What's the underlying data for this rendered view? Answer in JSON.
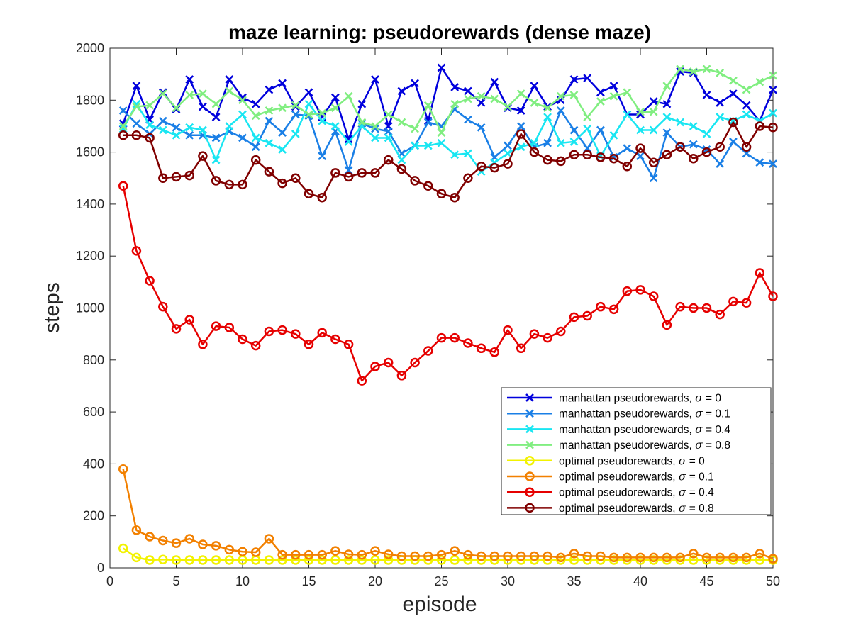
{
  "chart_data": {
    "type": "line",
    "title": "maze learning: pseudorewards (dense maze)",
    "xlabel": "episode",
    "ylabel": "steps",
    "xlim": [
      0,
      50
    ],
    "ylim": [
      0,
      2000
    ],
    "xticks": [
      0,
      5,
      10,
      15,
      20,
      25,
      30,
      35,
      40,
      45,
      50
    ],
    "yticks": [
      0,
      200,
      400,
      600,
      800,
      1000,
      1200,
      1400,
      1600,
      1800,
      2000
    ],
    "grid": false,
    "legend_position": "lower-right",
    "sigma_symbol": "σ",
    "x": [
      1,
      2,
      3,
      4,
      5,
      6,
      7,
      8,
      9,
      10,
      11,
      12,
      13,
      14,
      15,
      16,
      17,
      18,
      19,
      20,
      21,
      22,
      23,
      24,
      25,
      26,
      27,
      28,
      29,
      30,
      31,
      32,
      33,
      34,
      35,
      36,
      37,
      38,
      39,
      40,
      41,
      42,
      43,
      44,
      45,
      46,
      47,
      48,
      49,
      50
    ],
    "series": [
      {
        "name": "manhattan pseudorewards, ",
        "sigma": "0",
        "color": "#0000dd",
        "marker": "x",
        "values": [
          1710,
          1855,
          1725,
          1830,
          1765,
          1880,
          1775,
          1735,
          1880,
          1810,
          1785,
          1840,
          1865,
          1775,
          1830,
          1735,
          1810,
          1650,
          1785,
          1880,
          1700,
          1835,
          1865,
          1720,
          1925,
          1850,
          1835,
          1790,
          1870,
          1770,
          1760,
          1855,
          1775,
          1800,
          1880,
          1885,
          1830,
          1855,
          1745,
          1745,
          1795,
          1785,
          1910,
          1905,
          1820,
          1790,
          1825,
          1780,
          1720,
          1840
        ]
      },
      {
        "name": "manhattan pseudorewards, ",
        "sigma": "0.1",
        "color": "#1a7fe6",
        "marker": "x",
        "values": [
          1760,
          1710,
          1670,
          1720,
          1695,
          1665,
          1665,
          1655,
          1680,
          1655,
          1620,
          1720,
          1675,
          1745,
          1740,
          1585,
          1680,
          1530,
          1710,
          1690,
          1680,
          1595,
          1625,
          1715,
          1700,
          1765,
          1725,
          1695,
          1580,
          1625,
          1700,
          1620,
          1635,
          1760,
          1685,
          1615,
          1685,
          1580,
          1615,
          1585,
          1500,
          1675,
          1620,
          1630,
          1610,
          1555,
          1640,
          1595,
          1560,
          1555
        ]
      },
      {
        "name": "manhattan pseudorewards, ",
        "sigma": "0.4",
        "color": "#19e6f2",
        "marker": "x",
        "values": [
          1690,
          1785,
          1705,
          1685,
          1665,
          1695,
          1685,
          1570,
          1700,
          1745,
          1655,
          1635,
          1610,
          1670,
          1785,
          1720,
          1700,
          1640,
          1700,
          1655,
          1655,
          1570,
          1625,
          1625,
          1635,
          1590,
          1595,
          1525,
          1560,
          1595,
          1620,
          1635,
          1735,
          1635,
          1640,
          1690,
          1585,
          1665,
          1745,
          1685,
          1685,
          1735,
          1715,
          1700,
          1670,
          1735,
          1720,
          1745,
          1720,
          1750
        ]
      },
      {
        "name": "manhattan pseudorewards, ",
        "sigma": "0.8",
        "color": "#80ee80",
        "marker": "x",
        "values": [
          1700,
          1775,
          1780,
          1825,
          1770,
          1820,
          1825,
          1785,
          1835,
          1800,
          1740,
          1760,
          1770,
          1780,
          1745,
          1750,
          1770,
          1815,
          1715,
          1700,
          1745,
          1715,
          1690,
          1780,
          1675,
          1785,
          1805,
          1815,
          1805,
          1775,
          1825,
          1790,
          1770,
          1815,
          1820,
          1735,
          1795,
          1815,
          1830,
          1755,
          1755,
          1855,
          1920,
          1910,
          1920,
          1905,
          1875,
          1840,
          1870,
          1895
        ]
      },
      {
        "name": "optimal pseudorewards, ",
        "sigma": "0",
        "color": "#f2f200",
        "marker": "o",
        "values": [
          75,
          40,
          30,
          32,
          30,
          30,
          30,
          30,
          30,
          30,
          30,
          30,
          30,
          30,
          30,
          30,
          30,
          30,
          30,
          30,
          30,
          30,
          30,
          30,
          30,
          30,
          30,
          30,
          30,
          30,
          30,
          30,
          30,
          30,
          30,
          30,
          30,
          30,
          30,
          30,
          30,
          30,
          30,
          30,
          30,
          30,
          30,
          30,
          30,
          30
        ]
      },
      {
        "name": "optimal pseudorewards, ",
        "sigma": "0.1",
        "color": "#f28000",
        "marker": "o",
        "values": [
          380,
          145,
          120,
          105,
          95,
          112,
          90,
          85,
          70,
          62,
          60,
          112,
          50,
          50,
          50,
          50,
          65,
          52,
          50,
          65,
          52,
          45,
          45,
          45,
          50,
          65,
          50,
          45,
          45,
          45,
          45,
          45,
          45,
          40,
          55,
          45,
          45,
          40,
          40,
          40,
          40,
          40,
          40,
          55,
          40,
          40,
          40,
          40,
          55,
          35
        ]
      },
      {
        "name": "optimal pseudorewards, ",
        "sigma": "0.4",
        "color": "#e60000",
        "marker": "o",
        "values": [
          1470,
          1220,
          1105,
          1005,
          920,
          955,
          860,
          930,
          925,
          880,
          855,
          910,
          915,
          900,
          860,
          905,
          880,
          860,
          720,
          775,
          790,
          740,
          790,
          835,
          885,
          885,
          865,
          845,
          830,
          915,
          845,
          900,
          885,
          910,
          965,
          970,
          1005,
          995,
          1065,
          1070,
          1045,
          935,
          1005,
          1000,
          1000,
          975,
          1025,
          1020,
          1135,
          1045
        ]
      },
      {
        "name": "optimal pseudorewards, ",
        "sigma": "0.8",
        "color": "#800000",
        "marker": "o",
        "values": [
          1665,
          1665,
          1655,
          1500,
          1505,
          1510,
          1585,
          1490,
          1475,
          1475,
          1570,
          1525,
          1480,
          1500,
          1440,
          1425,
          1520,
          1505,
          1520,
          1520,
          1570,
          1535,
          1490,
          1470,
          1440,
          1425,
          1500,
          1545,
          1540,
          1555,
          1670,
          1600,
          1570,
          1565,
          1590,
          1590,
          1580,
          1575,
          1545,
          1615,
          1560,
          1590,
          1620,
          1575,
          1600,
          1620,
          1715,
          1620,
          1700,
          1695
        ]
      }
    ]
  }
}
